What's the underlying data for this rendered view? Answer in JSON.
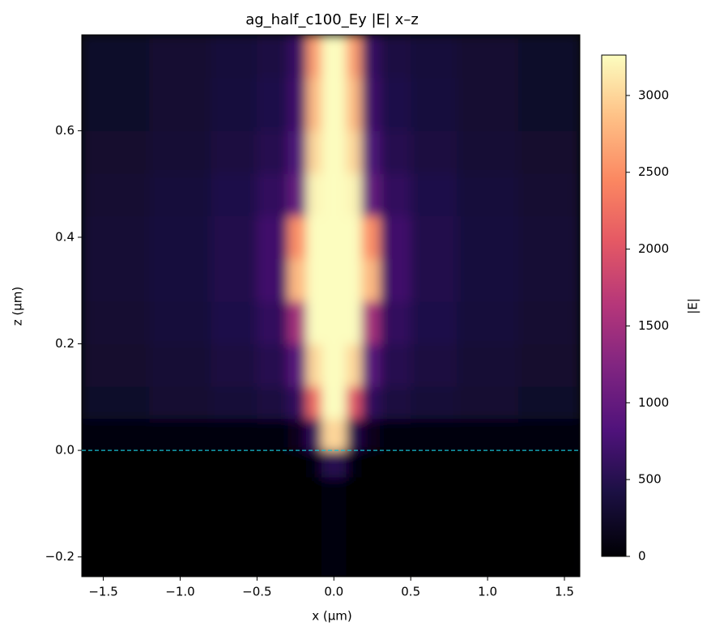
{
  "chart_data": {
    "type": "heatmap",
    "title": "ag_half_c100_Ey |E| x–z",
    "x_label": "x (µm)",
    "y_label": "z (µm)",
    "colorbar_label": "|E|",
    "colormap": "magma",
    "xlim": [
      -1.64,
      1.6
    ],
    "ylim": [
      -0.237,
      0.78
    ],
    "clim": [
      0,
      3263
    ],
    "xticks": [
      {
        "value": -1.5,
        "label": "−1.5"
      },
      {
        "value": -1.0,
        "label": "−1.0"
      },
      {
        "value": -0.5,
        "label": "−0.5"
      },
      {
        "value": 0,
        "label": "0.0"
      },
      0.5,
      {
        "value": 1.0,
        "label": "1.0"
      },
      1.5
    ],
    "yticks": [
      {
        "value": -0.2,
        "label": "−0.2"
      },
      {
        "value": 0,
        "label": "0.0"
      },
      0.2,
      0.4,
      0.6
    ],
    "cticks": [
      0,
      500,
      1000,
      1500,
      2000,
      2500,
      3000
    ],
    "hline": 0,
    "hline_color": "#17becf",
    "x_edges": [
      -1.64,
      -1.2,
      -0.8,
      -0.5,
      -0.3,
      -0.18,
      -0.08,
      0.08,
      0.18,
      0.3,
      0.5,
      0.8,
      1.2,
      1.6
    ],
    "z_edges": [
      -0.237,
      -0.05,
      0,
      0.06,
      0.12,
      0.2,
      0.28,
      0.36,
      0.44,
      0.52,
      0.6,
      0.7,
      0.78
    ],
    "values": [
      [
        0,
        0,
        0,
        0,
        0,
        0,
        60,
        0,
        0,
        0,
        0,
        0,
        0
      ],
      [
        0,
        0,
        0,
        0,
        0,
        30,
        500,
        30,
        0,
        0,
        0,
        0,
        0
      ],
      [
        20,
        40,
        60,
        80,
        150,
        600,
        3000,
        500,
        150,
        80,
        60,
        40,
        20
      ],
      [
        250,
        300,
        350,
        400,
        600,
        2200,
        3260,
        2000,
        600,
        400,
        350,
        300,
        250
      ],
      [
        280,
        330,
        400,
        500,
        900,
        3000,
        3260,
        3000,
        900,
        500,
        400,
        330,
        280
      ],
      [
        300,
        360,
        450,
        600,
        1500,
        3260,
        3260,
        3260,
        1500,
        600,
        450,
        360,
        300
      ],
      [
        320,
        380,
        480,
        700,
        2800,
        3260,
        3260,
        3260,
        2800,
        700,
        480,
        380,
        320
      ],
      [
        320,
        380,
        480,
        700,
        2500,
        3260,
        3260,
        3260,
        2500,
        700,
        480,
        380,
        320
      ],
      [
        300,
        360,
        450,
        600,
        1000,
        3200,
        3260,
        3200,
        1000,
        600,
        450,
        360,
        300
      ],
      [
        280,
        330,
        400,
        500,
        800,
        3000,
        3260,
        3000,
        800,
        500,
        400,
        330,
        280
      ],
      [
        260,
        310,
        380,
        450,
        700,
        2800,
        3260,
        2800,
        700,
        450,
        380,
        310,
        260
      ],
      [
        250,
        300,
        360,
        420,
        650,
        2600,
        3260,
        2600,
        650,
        420,
        360,
        300,
        250
      ]
    ]
  }
}
